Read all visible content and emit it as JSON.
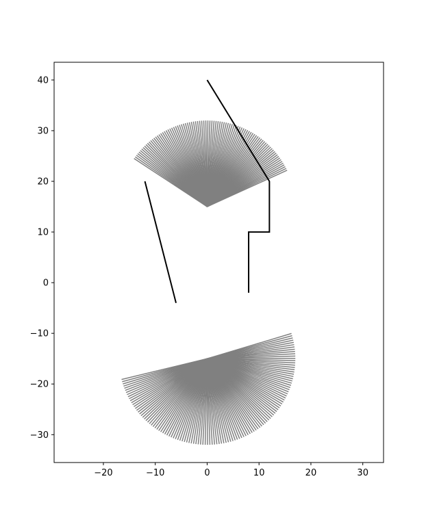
{
  "chart_data": {
    "type": "line",
    "title": "",
    "xlabel": "",
    "ylabel": "",
    "xlim": [
      -29.5,
      34
    ],
    "ylim": [
      -35.5,
      43.5
    ],
    "grid": false,
    "legend": "none",
    "x_ticks": [
      -20,
      -10,
      0,
      10,
      20,
      30
    ],
    "y_ticks": [
      -30,
      -20,
      -10,
      0,
      10,
      20,
      30,
      40
    ],
    "ray_fans": [
      {
        "name": "",
        "origin": [
          0,
          15
        ],
        "radius": 17,
        "start_angle_deg": 25,
        "end_angle_deg": 146,
        "count": 90,
        "color": "#808080"
      },
      {
        "name": "",
        "origin": [
          0,
          -15
        ],
        "radius": 17,
        "start_angle_deg": 194,
        "end_angle_deg": 377,
        "count": 120,
        "color": "#808080"
      }
    ],
    "walls": [
      {
        "points": [
          [
            -12,
            20
          ],
          [
            -6,
            -4
          ]
        ],
        "color": "#000000"
      },
      {
        "points": [
          [
            0,
            40
          ],
          [
            12,
            20
          ],
          [
            12,
            10
          ],
          [
            8,
            10
          ],
          [
            8,
            -2
          ]
        ],
        "color": "#000000"
      }
    ]
  }
}
